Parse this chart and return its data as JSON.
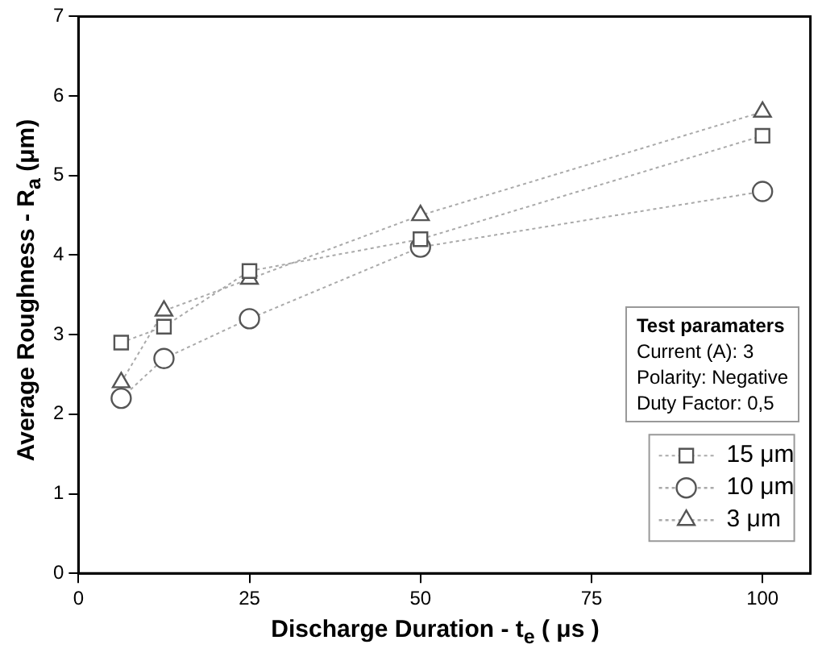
{
  "chart_data": {
    "type": "line",
    "xlabel": "Discharge Duration - t$_{e}$ ( μs )",
    "ylabel": "Average Roughness - R$_{a}$ (μm)",
    "x": [
      6.25,
      12.5,
      25,
      50,
      100
    ],
    "series": [
      {
        "name": "15 μm",
        "color": "#555555",
        "marker": "square",
        "values": [
          2.9,
          3.1,
          3.8,
          4.2,
          5.5
        ]
      },
      {
        "name": "10 μm",
        "color": "#555555",
        "marker": "circle",
        "values": [
          2.2,
          2.7,
          3.2,
          4.1,
          4.8
        ]
      },
      {
        "name": "3 μm",
        "color": "#555555",
        "marker": "triangle",
        "values": [
          2.4,
          3.3,
          3.7,
          4.5,
          5.8
        ]
      }
    ],
    "xlim": [
      0,
      107
    ],
    "xticks": [
      0,
      25,
      50,
      75,
      100
    ],
    "ylim": [
      0,
      7
    ],
    "yticks": [
      0,
      1,
      2,
      3,
      4,
      5,
      6,
      7
    ],
    "grid": false,
    "legend": "bottom right",
    "line_style": "dotted",
    "annotations": [
      "Test paramaters",
      "Current (A): 3",
      "Polarity: Negative",
      "Duty Factor: 0,5"
    ]
  }
}
